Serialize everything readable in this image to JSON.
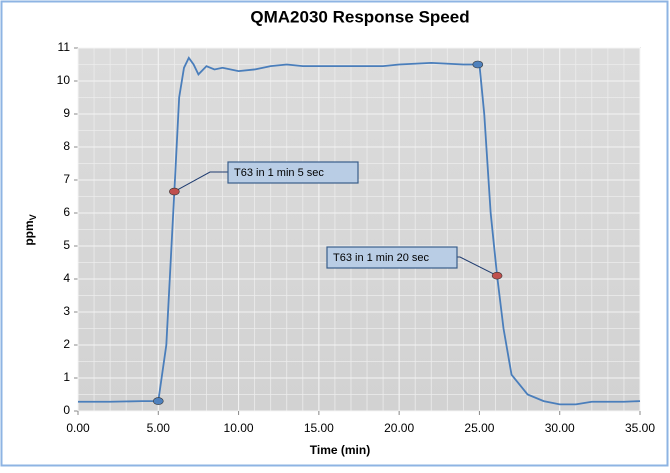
{
  "chart_data": {
    "type": "line",
    "title": "QMA2030 Response Speed",
    "xlabel": "Time (min)",
    "ylabel": "ppm",
    "ylabel_subscript": "V",
    "x": [
      0,
      2,
      4,
      5,
      5.5,
      6,
      6.3,
      6.6,
      6.9,
      7.2,
      7.5,
      8,
      8.5,
      9,
      10,
      11,
      12,
      13,
      14,
      15,
      17,
      19,
      20,
      22,
      24,
      25,
      25.3,
      25.7,
      26.1,
      26.5,
      27,
      28,
      29,
      30,
      31,
      32,
      34,
      35
    ],
    "series": [
      {
        "name": "ppmV",
        "color": "#4a7ebb",
        "values": [
          0.28,
          0.28,
          0.3,
          0.3,
          2,
          6.65,
          9.5,
          10.4,
          10.7,
          10.5,
          10.2,
          10.45,
          10.35,
          10.4,
          10.3,
          10.35,
          10.45,
          10.5,
          10.45,
          10.45,
          10.45,
          10.45,
          10.5,
          10.55,
          10.5,
          10.5,
          9,
          6,
          4.1,
          2.5,
          1.1,
          0.5,
          0.3,
          0.2,
          0.2,
          0.28,
          0.28,
          0.3
        ]
      }
    ],
    "markers": [
      {
        "x": 5,
        "y": 0.3,
        "color": "#4f81bd"
      },
      {
        "x": 6,
        "y": 6.65,
        "color": "#c0504d"
      },
      {
        "x": 24.9,
        "y": 10.5,
        "color": "#4f81bd"
      },
      {
        "x": 26.1,
        "y": 4.1,
        "color": "#c0504d"
      }
    ],
    "annotations": [
      {
        "text": "T63 in 1 min 5 sec",
        "x": 6,
        "y": 6.65
      },
      {
        "text": "T63 in 1 min 20 sec",
        "x": 26.1,
        "y": 4.1
      }
    ],
    "xlim": [
      0,
      35
    ],
    "ylim": [
      0,
      11
    ],
    "xticks": [
      {
        "value": 0,
        "label": "0.00"
      },
      {
        "value": 5,
        "label": "5.00"
      },
      {
        "value": 10,
        "label": "10.00"
      },
      {
        "value": 15,
        "label": "15.00"
      },
      {
        "value": 20,
        "label": "20.00"
      },
      {
        "value": 25,
        "label": "25.00"
      },
      {
        "value": 30,
        "label": "30.00"
      },
      {
        "value": 35,
        "label": "35.00"
      }
    ],
    "yticks": [
      0,
      1,
      2,
      3,
      4,
      5,
      6,
      7,
      8,
      9,
      10,
      11
    ],
    "grid": true,
    "minor_grid": true,
    "legend": false
  }
}
